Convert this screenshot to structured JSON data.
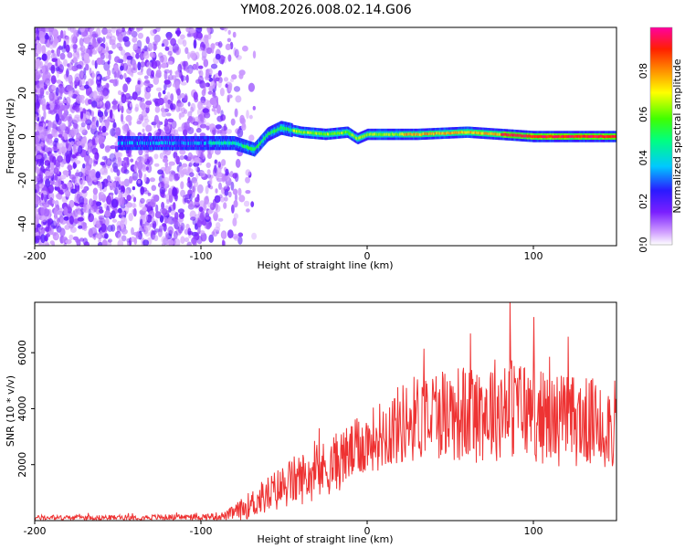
{
  "title": "YM08.2026.008.02.14.G06",
  "chart_data": [
    {
      "type": "heatmap",
      "xlabel": "Height of straight line (km)",
      "ylabel": "Frequency (Hz)",
      "xlim": [
        -200,
        150
      ],
      "ylim": [
        -50,
        50
      ],
      "xticks": [
        -200,
        -100,
        0,
        100
      ],
      "xtick_labels": [
        "-200",
        "-100",
        "0",
        "100"
      ],
      "yticks": [
        -40,
        -20,
        0,
        20,
        40
      ],
      "ytick_labels": [
        "-40",
        "-20",
        "0",
        "20",
        "40"
      ],
      "colorbar": {
        "label": "Normalized spectral amplitude",
        "range": [
          0,
          1
        ],
        "ticks": [
          0.0,
          0.2,
          0.4,
          0.6,
          0.8
        ],
        "tick_labels": [
          "0.0",
          "0.2",
          "0.4",
          "0.6",
          "0.8"
        ],
        "colors": [
          "#ffffff",
          "#b47cff",
          "#7a1fff",
          "#1a1aff",
          "#00e5ff",
          "#00ff30",
          "#ffff00",
          "#ff8000",
          "#ff0000",
          "#ff00a0"
        ]
      },
      "description_values": {
        "noise_region_km": [
          -200,
          -75
        ],
        "signal_onset_km": -150,
        "peak_track": [
          {
            "x": -150,
            "f": -3
          },
          {
            "x": -100,
            "f": -3
          },
          {
            "x": -80,
            "f": -3
          },
          {
            "x": -68,
            "f": -6
          },
          {
            "x": -60,
            "f": 1
          },
          {
            "x": -52,
            "f": 4
          },
          {
            "x": -40,
            "f": 2
          },
          {
            "x": -25,
            "f": 1
          },
          {
            "x": -12,
            "f": 2
          },
          {
            "x": -6,
            "f": -1
          },
          {
            "x": 0,
            "f": 1
          },
          {
            "x": 30,
            "f": 1
          },
          {
            "x": 60,
            "f": 2
          },
          {
            "x": 100,
            "f": 0
          },
          {
            "x": 150,
            "f": 0
          }
        ]
      }
    },
    {
      "type": "line",
      "xlabel": "Height of straight line (km)",
      "ylabel": "SNR (10 * v/v)",
      "xlim": [
        -200,
        150
      ],
      "ylim": [
        0,
        7800
      ],
      "xticks": [
        -200,
        -100,
        0,
        100
      ],
      "xtick_labels": [
        "-200",
        "-100",
        "0",
        "100"
      ],
      "yticks": [
        2000,
        4000,
        6000
      ],
      "ytick_labels": [
        "2000",
        "4000",
        "6000"
      ],
      "color": "#ee3333",
      "envelope": {
        "x": [
          -200,
          -150,
          -100,
          -85,
          -75,
          -60,
          -45,
          -30,
          -15,
          0,
          15,
          30,
          45,
          60,
          75,
          90,
          105,
          120,
          135,
          150
        ],
        "mean": [
          100,
          110,
          130,
          170,
          420,
          900,
          1400,
          1700,
          2200,
          2800,
          3300,
          3700,
          3900,
          3800,
          4000,
          4100,
          3700,
          3600,
          3500,
          3400
        ],
        "amplitude": [
          80,
          90,
          110,
          160,
          400,
          700,
          900,
          1000,
          1100,
          1100,
          1400,
          1600,
          1700,
          1800,
          1900,
          1900,
          1700,
          1700,
          1600,
          1600
        ]
      },
      "peak": {
        "x": 86,
        "y": 7800
      }
    }
  ]
}
